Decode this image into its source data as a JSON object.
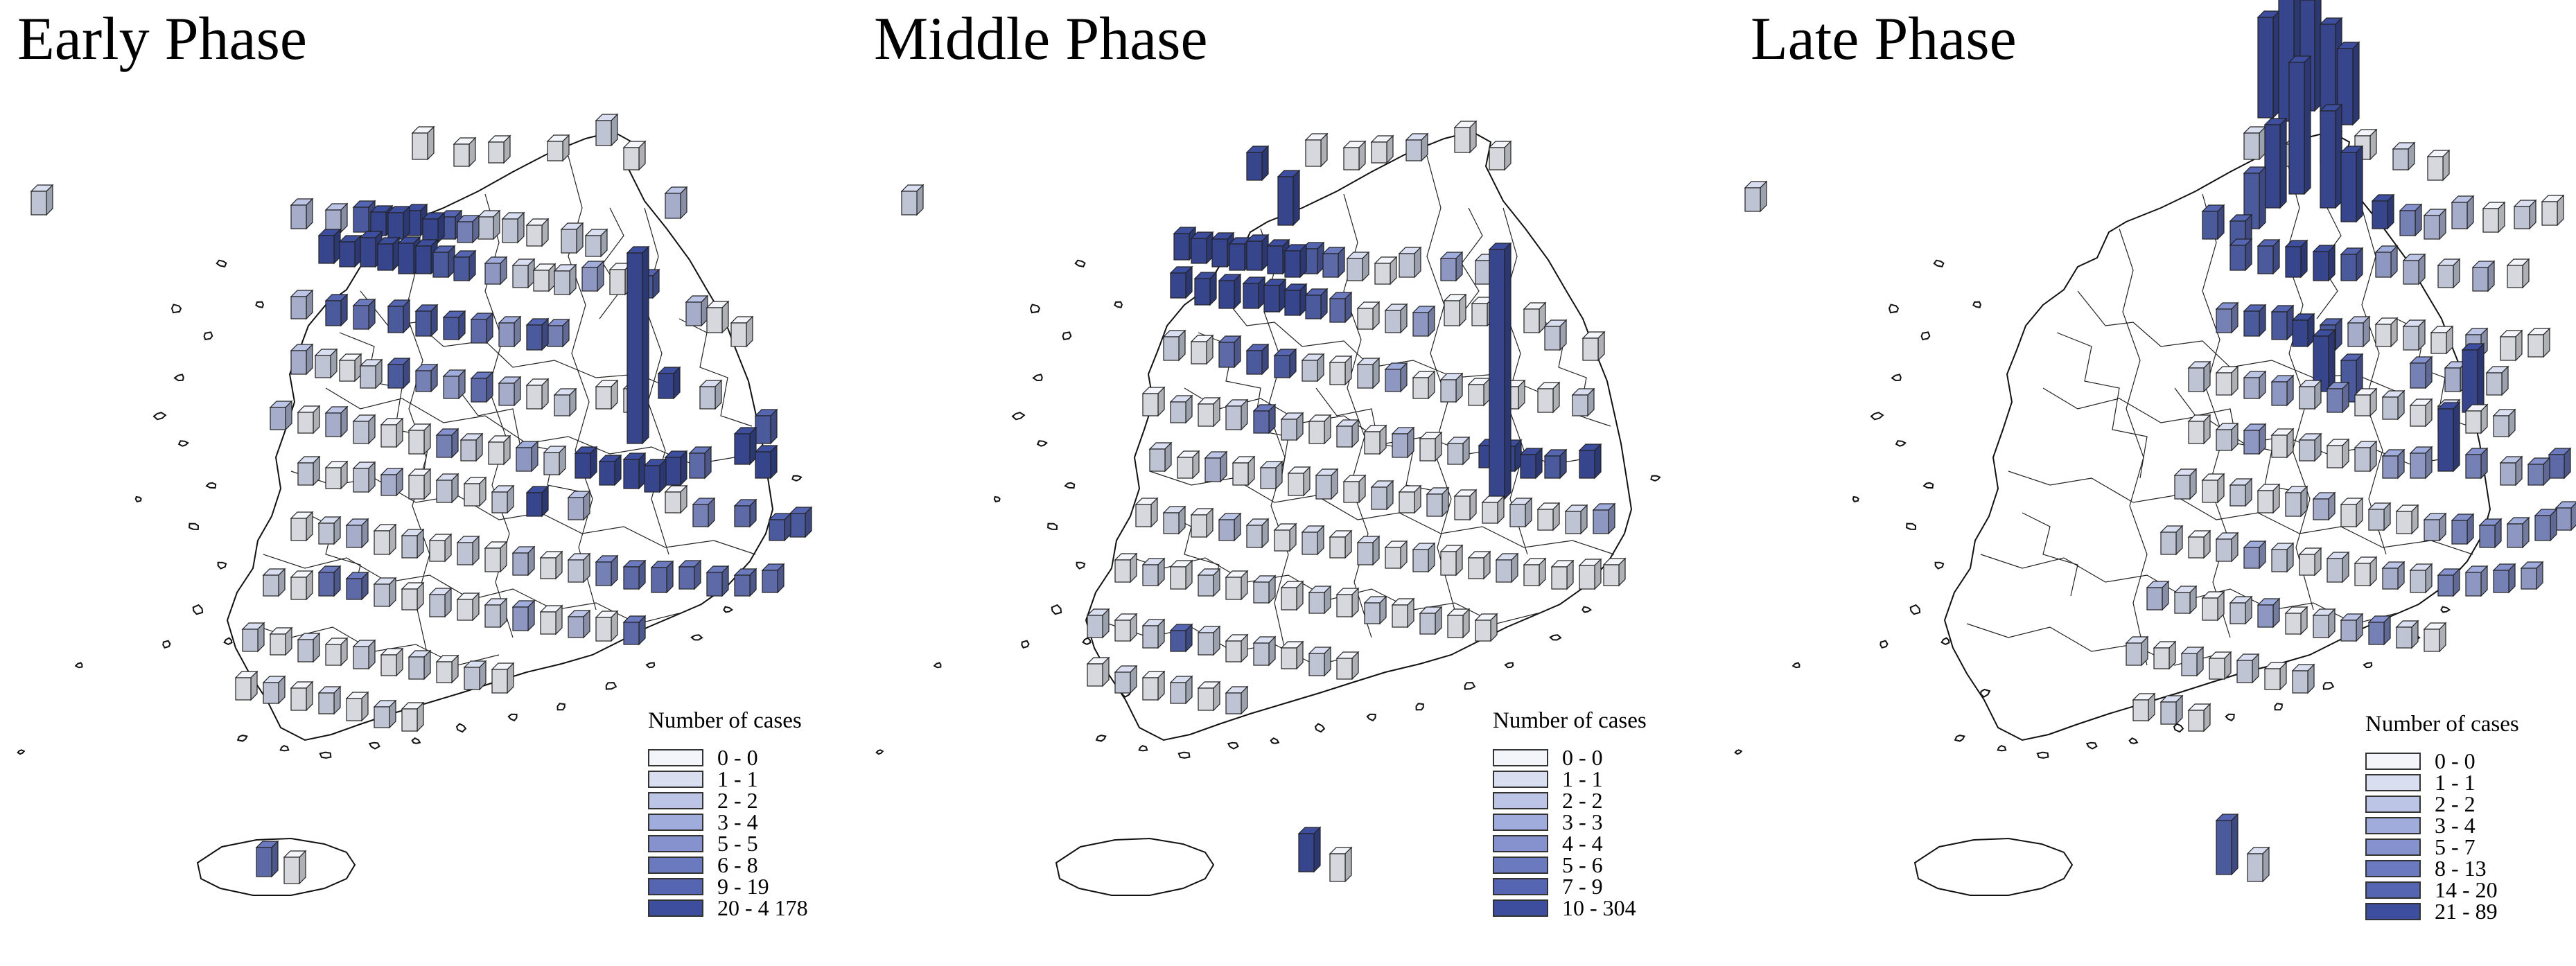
{
  "panels": [
    {
      "title": "Early Phase",
      "legend": {
        "title": "Number of cases",
        "items": [
          {
            "label": "0 - 0",
            "color": "#f3f5fb"
          },
          {
            "label": "1 - 1",
            "color": "#d9dff1"
          },
          {
            "label": "2 - 2",
            "color": "#bcc5e6"
          },
          {
            "label": "3 - 4",
            "color": "#a0acdb"
          },
          {
            "label": "5 - 5",
            "color": "#8592cd"
          },
          {
            "label": "6 - 8",
            "color": "#6b79bf"
          },
          {
            "label": "9 - 19",
            "color": "#5565b2"
          },
          {
            "label": "20 - 4 178",
            "color": "#3d4e9f"
          }
        ]
      }
    },
    {
      "title": "Middle Phase",
      "legend": {
        "title": "Number of cases",
        "items": [
          {
            "label": "0 - 0",
            "color": "#f3f5fb"
          },
          {
            "label": "1 - 1",
            "color": "#d9dff1"
          },
          {
            "label": "2 - 2",
            "color": "#bcc5e6"
          },
          {
            "label": "3 - 3",
            "color": "#a0acdb"
          },
          {
            "label": "4 - 4",
            "color": "#8592cd"
          },
          {
            "label": "5 - 6",
            "color": "#6b79bf"
          },
          {
            "label": "7 - 9",
            "color": "#5565b2"
          },
          {
            "label": "10 - 304",
            "color": "#3d4e9f"
          }
        ]
      }
    },
    {
      "title": "Late Phase",
      "legend": {
        "title": "Number of cases",
        "items": [
          {
            "label": "0 - 0",
            "color": "#f3f5fb"
          },
          {
            "label": "1 - 1",
            "color": "#d9dff1"
          },
          {
            "label": "2 - 2",
            "color": "#bcc5e6"
          },
          {
            "label": "3 - 4",
            "color": "#a0acdb"
          },
          {
            "label": "5 - 7",
            "color": "#8592cd"
          },
          {
            "label": "8 - 13",
            "color": "#6b79bf"
          },
          {
            "label": "14 - 20",
            "color": "#5565b2"
          },
          {
            "label": "21 - 89",
            "color": "#3d4e9f"
          }
        ]
      }
    }
  ]
}
